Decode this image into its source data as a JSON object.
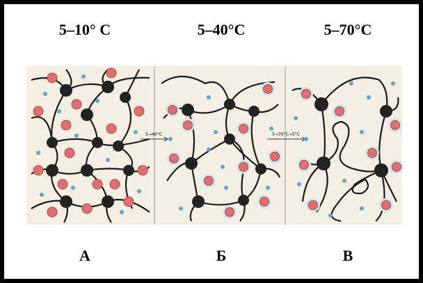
{
  "panels": [
    {
      "title": "5–10° C",
      "label": "А"
    },
    {
      "title": "5–40°C",
      "label": "Б"
    },
    {
      "title": "5–70°C",
      "label": "В"
    }
  ],
  "transitions": [
    "5→40°C",
    "5→70°C→5°C"
  ]
}
